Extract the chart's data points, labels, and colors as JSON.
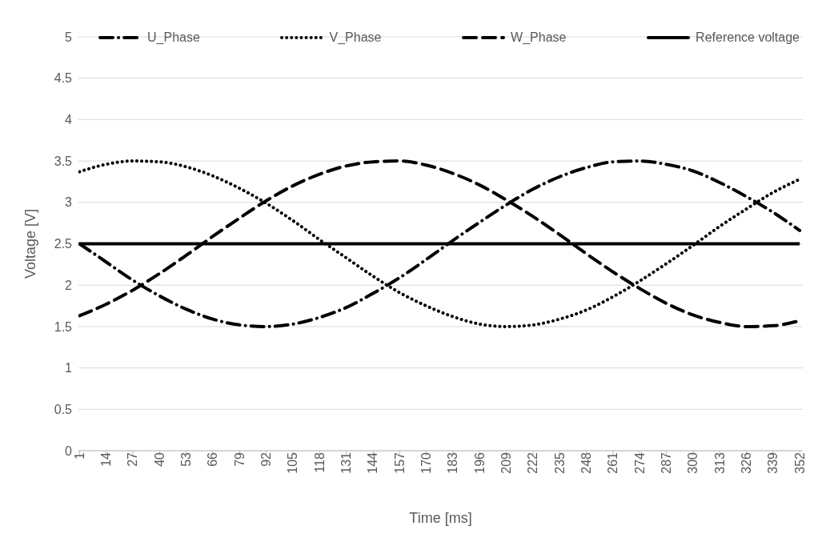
{
  "chart_data": {
    "type": "line",
    "xlabel": "Time [ms]",
    "ylabel": "Voltage [V]",
    "x": [
      1,
      14,
      27,
      40,
      53,
      66,
      79,
      92,
      105,
      118,
      131,
      144,
      157,
      170,
      183,
      196,
      209,
      222,
      235,
      248,
      261,
      274,
      287,
      300,
      313,
      326,
      339,
      352
    ],
    "xlim": [
      0.5,
      353.5
    ],
    "xticks": [
      1,
      14,
      27,
      40,
      53,
      66,
      79,
      92,
      105,
      118,
      131,
      144,
      157,
      170,
      183,
      196,
      209,
      222,
      235,
      248,
      261,
      274,
      287,
      300,
      313,
      326,
      339,
      352
    ],
    "ylim": [
      0,
      5
    ],
    "yticks": [
      0,
      0.5,
      1,
      1.5,
      2,
      2.5,
      3,
      3.5,
      4,
      4.5,
      5
    ],
    "grid": "y",
    "legend": "top",
    "marker": "none",
    "series": [
      {
        "name": "U_Phase",
        "color": "#000000",
        "line_style": "dashdot",
        "values": [
          2.5,
          2.28,
          2.06,
          1.87,
          1.71,
          1.59,
          1.52,
          1.5,
          1.53,
          1.61,
          1.73,
          1.9,
          2.09,
          2.31,
          2.54,
          2.76,
          2.97,
          3.16,
          3.31,
          3.42,
          3.49,
          3.5,
          3.46,
          3.38,
          3.24,
          3.07,
          2.88,
          2.66
        ]
      },
      {
        "name": "V_Phase",
        "color": "#000000",
        "line_style": "dotted",
        "values": [
          3.37,
          3.46,
          3.5,
          3.49,
          3.43,
          3.32,
          3.17,
          2.99,
          2.78,
          2.55,
          2.33,
          2.11,
          1.91,
          1.75,
          1.62,
          1.53,
          1.5,
          1.52,
          1.59,
          1.7,
          1.86,
          2.05,
          2.26,
          2.48,
          2.71,
          2.92,
          3.12,
          3.28
        ]
      },
      {
        "name": "W_Phase",
        "color": "#000000",
        "line_style": "dashed",
        "values": [
          1.63,
          1.77,
          1.94,
          2.14,
          2.36,
          2.59,
          2.81,
          3.02,
          3.2,
          3.34,
          3.44,
          3.49,
          3.5,
          3.45,
          3.35,
          3.21,
          3.03,
          2.83,
          2.61,
          2.38,
          2.16,
          1.96,
          1.78,
          1.64,
          1.55,
          1.5,
          1.51,
          1.57
        ]
      },
      {
        "name": "Reference voltage",
        "color": "#000000",
        "line_style": "solid",
        "values": [
          2.5,
          2.5,
          2.5,
          2.5,
          2.5,
          2.5,
          2.5,
          2.5,
          2.5,
          2.5,
          2.5,
          2.5,
          2.5,
          2.5,
          2.5,
          2.5,
          2.5,
          2.5,
          2.5,
          2.5,
          2.5,
          2.5,
          2.5,
          2.5,
          2.5,
          2.5,
          2.5,
          2.5
        ]
      }
    ]
  }
}
